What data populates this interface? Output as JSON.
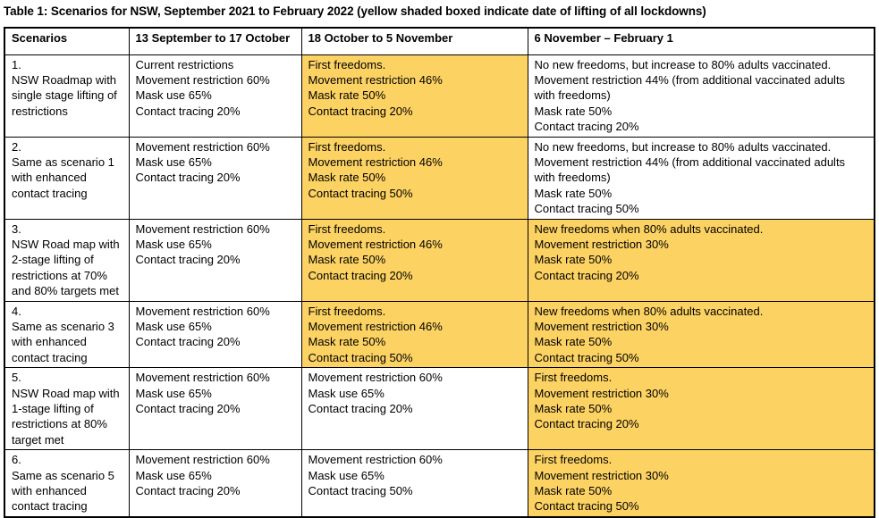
{
  "title": "Table 1: Scenarios for NSW, September 2021 to February 2022  (yellow shaded boxed indicate date of lifting of all lockdowns)",
  "colors": {
    "highlight_yellow": "#FCD263",
    "border": "#000000",
    "text": "#000000"
  },
  "legend_note": "yellow shaded boxed indicate date of lifting of all lockdowns",
  "table": {
    "headers": [
      "Scenarios",
      "13 September to 17 October",
      "18 October to 5 November",
      "6 November – February 1"
    ],
    "rows": [
      {
        "cells": [
          {
            "text": "1.\nNSW Roadmap with single stage lifting of restrictions",
            "highlighted": false
          },
          {
            "text": "Current restrictions\nMovement restriction 60%\nMask use 65%\nContact tracing 20%",
            "highlighted": false
          },
          {
            "text": "First freedoms.\nMovement restriction 46%\nMask rate 50%\nContact tracing 20%",
            "highlighted": true
          },
          {
            "text": "No new freedoms, but increase to 80% adults vaccinated.\nMovement restriction 44% (from additional vaccinated adults with freedoms)\nMask rate 50%\nContact tracing 20%",
            "highlighted": false
          }
        ]
      },
      {
        "cells": [
          {
            "text": "2.\nSame as scenario 1 with enhanced contact tracing",
            "highlighted": false
          },
          {
            "text": "Movement restriction 60%\nMask use 65%\nContact tracing 20%",
            "highlighted": false
          },
          {
            "text": "First freedoms.\nMovement restriction 46%\nMask rate 50%\nContact tracing 50%",
            "highlighted": true
          },
          {
            "text": "No new freedoms, but increase to 80% adults vaccinated.\nMovement restriction 44% (from additional vaccinated adults with freedoms)\nMask rate 50%\nContact tracing 50%",
            "highlighted": false
          }
        ]
      },
      {
        "cells": [
          {
            "text": "3.\nNSW Road map with 2-stage lifting of restrictions at 70% and 80% targets met",
            "highlighted": false
          },
          {
            "text": "Movement restriction 60%\nMask use 65%\nContact tracing 20%",
            "highlighted": false
          },
          {
            "text": "First freedoms.\nMovement restriction 46%\nMask rate 50%\nContact tracing 20%",
            "highlighted": true
          },
          {
            "text": "New freedoms when 80% adults vaccinated.\nMovement restriction 30%\nMask rate 50%\nContact tracing 20%",
            "highlighted": true
          }
        ]
      },
      {
        "cells": [
          {
            "text": "4.\nSame as scenario 3 with enhanced contact tracing",
            "highlighted": false
          },
          {
            "text": "Movement restriction 60%\nMask use 65%\nContact tracing 20%",
            "highlighted": false
          },
          {
            "text": "First freedoms.\nMovement restriction 46%\nMask rate 50%\nContact tracing 50%",
            "highlighted": true
          },
          {
            "text": "New freedoms when 80% adults vaccinated.\nMovement restriction 30%\nMask rate 50%\nContact tracing 50%",
            "highlighted": true
          }
        ]
      },
      {
        "cells": [
          {
            "text": "5.\nNSW Road map with 1-stage lifting of restrictions at 80% target met",
            "highlighted": false
          },
          {
            "text": "Movement restriction 60%\nMask use 65%\nContact tracing 20%",
            "highlighted": false
          },
          {
            "text": "Movement restriction 60%\nMask use 65%\nContact tracing 20%",
            "highlighted": false
          },
          {
            "text": "First freedoms.\nMovement restriction 30%\nMask rate 50%\nContact tracing 20%",
            "highlighted": true
          }
        ]
      },
      {
        "cells": [
          {
            "text": "6.\nSame as scenario 5 with enhanced contact tracing",
            "highlighted": false
          },
          {
            "text": "Movement restriction 60%\nMask use 65%\nContact tracing 20%",
            "highlighted": false
          },
          {
            "text": "Movement restriction 60%\nMask use 65%\nContact tracing 50%",
            "highlighted": false
          },
          {
            "text": "First freedoms.\nMovement restriction 30%\nMask rate 50%\nContact tracing 50%",
            "highlighted": true
          }
        ]
      }
    ]
  }
}
